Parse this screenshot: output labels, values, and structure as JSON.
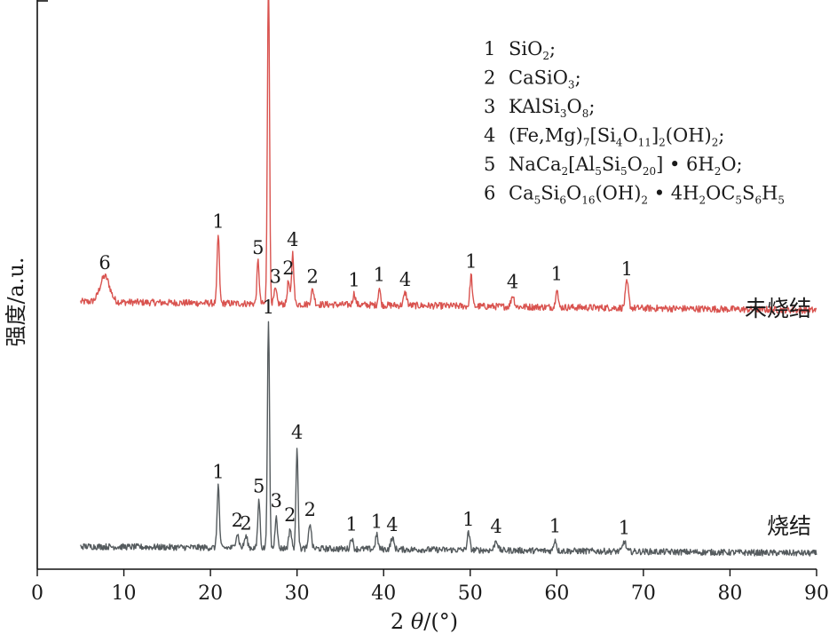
{
  "chart_data": {
    "type": "line",
    "xlabel_parts": [
      "2 ",
      "θ",
      "/(°)"
    ],
    "ylabel": "强度/a.u.",
    "xlim": [
      0,
      90
    ],
    "xticks": [
      0,
      10,
      20,
      30,
      40,
      50,
      60,
      70,
      80,
      90
    ],
    "y_ticks_shown": false,
    "legend": {
      "placement": "top-right",
      "entries": [
        {
          "num": "1",
          "parts": [
            [
              "SiO",
              "n"
            ],
            [
              "2",
              "sub"
            ],
            [
              ";",
              "n"
            ]
          ]
        },
        {
          "num": "2",
          "parts": [
            [
              "CaSiO",
              "n"
            ],
            [
              "3",
              "sub"
            ],
            [
              ";",
              "n"
            ]
          ]
        },
        {
          "num": "3",
          "parts": [
            [
              "KAlSi",
              "n"
            ],
            [
              "3",
              "sub"
            ],
            [
              "O",
              "n"
            ],
            [
              "8",
              "sub"
            ],
            [
              ";",
              "n"
            ]
          ]
        },
        {
          "num": "4",
          "parts": [
            [
              "(Fe,Mg)",
              "n"
            ],
            [
              "7",
              "sub"
            ],
            [
              "[Si",
              "n"
            ],
            [
              "4",
              "sub"
            ],
            [
              "O",
              "n"
            ],
            [
              "11",
              "sub"
            ],
            [
              "]",
              "n"
            ],
            [
              "2",
              "sub"
            ],
            [
              "(OH)",
              "n"
            ],
            [
              "2",
              "sub"
            ],
            [
              ";",
              "n"
            ]
          ]
        },
        {
          "num": "5",
          "parts": [
            [
              "NaCa",
              "n"
            ],
            [
              "2",
              "sub"
            ],
            [
              "[Al",
              "n"
            ],
            [
              "5",
              "sub"
            ],
            [
              "Si",
              "n"
            ],
            [
              "5",
              "sub"
            ],
            [
              "O",
              "n"
            ],
            [
              "20",
              "sub"
            ],
            [
              "] • 6H",
              "n"
            ],
            [
              "2",
              "sub"
            ],
            [
              "O;",
              "n"
            ]
          ]
        },
        {
          "num": "6",
          "parts": [
            [
              "Ca",
              "n"
            ],
            [
              "5",
              "sub"
            ],
            [
              "Si",
              "n"
            ],
            [
              "6",
              "sub"
            ],
            [
              "O",
              "n"
            ],
            [
              "16",
              "sub"
            ],
            [
              "(OH)",
              "n"
            ],
            [
              "2",
              "sub"
            ],
            [
              " • 4H",
              "n"
            ],
            [
              "2",
              "sub"
            ],
            [
              "OC",
              "n"
            ],
            [
              "5",
              "sub"
            ],
            [
              "S",
              "n"
            ],
            [
              "6",
              "sub"
            ],
            [
              "H",
              "n"
            ],
            [
              "5",
              "sub"
            ]
          ]
        }
      ]
    },
    "series": [
      {
        "name": "未烧结",
        "color": "#d9534f",
        "baseline": 0.47,
        "drift": -0.015,
        "noise": 0.012,
        "x_range": [
          5,
          90
        ],
        "peaks": [
          {
            "x": 7.8,
            "h": 0.045,
            "w": 0.55,
            "label": "6"
          },
          {
            "x": 20.9,
            "h": 0.12,
            "w": 0.13,
            "label": "1"
          },
          {
            "x": 25.5,
            "h": 0.075,
            "w": 0.13,
            "label": "5"
          },
          {
            "x": 26.7,
            "h": 0.58,
            "w": 0.12,
            "label": "1"
          },
          {
            "x": 27.5,
            "h": 0.025,
            "w": 0.15,
            "label": "3"
          },
          {
            "x": 29.0,
            "h": 0.04,
            "w": 0.13,
            "label": "2"
          },
          {
            "x": 29.5,
            "h": 0.09,
            "w": 0.13,
            "label": "4"
          },
          {
            "x": 31.8,
            "h": 0.025,
            "w": 0.18,
            "label": "2"
          },
          {
            "x": 36.6,
            "h": 0.02,
            "w": 0.15,
            "label": "1"
          },
          {
            "x": 39.5,
            "h": 0.03,
            "w": 0.13,
            "label": "1"
          },
          {
            "x": 42.5,
            "h": 0.022,
            "w": 0.18,
            "label": "4"
          },
          {
            "x": 50.1,
            "h": 0.055,
            "w": 0.13,
            "label": "1"
          },
          {
            "x": 54.9,
            "h": 0.02,
            "w": 0.18,
            "label": "4"
          },
          {
            "x": 60.0,
            "h": 0.035,
            "w": 0.13,
            "label": "1"
          },
          {
            "x": 68.1,
            "h": 0.045,
            "w": 0.18,
            "label": "1"
          }
        ]
      },
      {
        "name": "烧结",
        "color": "#555b5e",
        "baseline": 0.04,
        "drift": -0.012,
        "noise": 0.011,
        "x_range": [
          5,
          90
        ],
        "peaks": [
          {
            "x": 20.9,
            "h": 0.11,
            "w": 0.13,
            "label": "1"
          },
          {
            "x": 23.1,
            "h": 0.025,
            "w": 0.18,
            "label": "2"
          },
          {
            "x": 24.1,
            "h": 0.02,
            "w": 0.18,
            "label": "2"
          },
          {
            "x": 25.6,
            "h": 0.085,
            "w": 0.13,
            "label": "5"
          },
          {
            "x": 26.7,
            "h": 0.4,
            "w": 0.12,
            "label": "1"
          },
          {
            "x": 27.6,
            "h": 0.06,
            "w": 0.13,
            "label": "3"
          },
          {
            "x": 29.2,
            "h": 0.035,
            "w": 0.15,
            "label": "2"
          },
          {
            "x": 30.0,
            "h": 0.18,
            "w": 0.12,
            "label": "4"
          },
          {
            "x": 31.5,
            "h": 0.045,
            "w": 0.15,
            "label": "2"
          },
          {
            "x": 36.3,
            "h": 0.02,
            "w": 0.15,
            "label": "1"
          },
          {
            "x": 39.2,
            "h": 0.025,
            "w": 0.15,
            "label": "1"
          },
          {
            "x": 41.0,
            "h": 0.02,
            "w": 0.18,
            "label": "4"
          },
          {
            "x": 49.8,
            "h": 0.03,
            "w": 0.15,
            "label": "1"
          },
          {
            "x": 53.0,
            "h": 0.018,
            "w": 0.18,
            "label": "4"
          },
          {
            "x": 59.8,
            "h": 0.02,
            "w": 0.15,
            "label": "1"
          },
          {
            "x": 67.8,
            "h": 0.018,
            "w": 0.18,
            "label": "1"
          }
        ]
      }
    ]
  }
}
